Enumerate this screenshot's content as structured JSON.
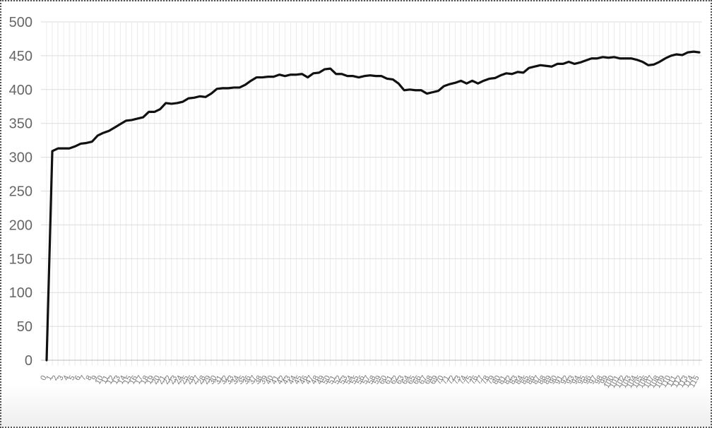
{
  "chart_data": {
    "type": "line",
    "title": "",
    "xlabel": "",
    "ylabel": "",
    "ylim": [
      0,
      500
    ],
    "yticks": [
      0,
      50,
      100,
      150,
      200,
      250,
      300,
      350,
      400,
      450,
      500
    ],
    "grid": true,
    "legend": "none",
    "series": [
      {
        "color": "#111111",
        "values": [
          0,
          309,
          313,
          313,
          313,
          316,
          320,
          321,
          323,
          332,
          336,
          339,
          344,
          349,
          354,
          355,
          357,
          359,
          367,
          367,
          371,
          380,
          379,
          380,
          382,
          387,
          388,
          390,
          389,
          394,
          401,
          402,
          402,
          403,
          403,
          407,
          413,
          418,
          418,
          419,
          419,
          422,
          420,
          422,
          422,
          423,
          418,
          424,
          425,
          430,
          431,
          423,
          423,
          420,
          420,
          418,
          420,
          421,
          420,
          420,
          416,
          415,
          409,
          399,
          400,
          399,
          399,
          394,
          396,
          398,
          405,
          408,
          410,
          413,
          409,
          413,
          409,
          413,
          416,
          417,
          421,
          424,
          423,
          426,
          425,
          432,
          434,
          436,
          435,
          434,
          438,
          438,
          441,
          438,
          440,
          443,
          446,
          446,
          448,
          447,
          448,
          446,
          446,
          446,
          444,
          441,
          436,
          437,
          441,
          446,
          450,
          452,
          451,
          455,
          456,
          455
        ]
      }
    ]
  }
}
